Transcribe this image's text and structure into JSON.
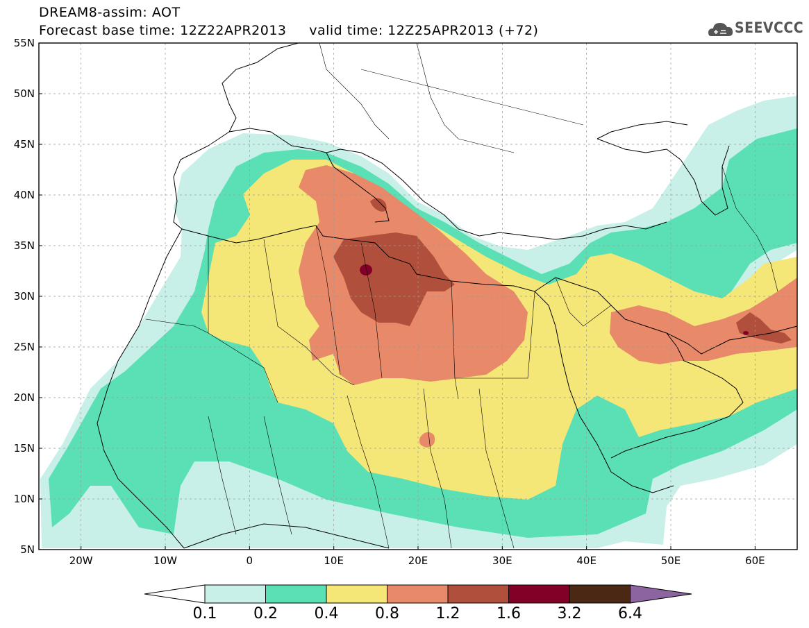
{
  "header": {
    "title": "DREAM8-assim: AOT",
    "subtitle_left": "Forecast base time: 12Z22APR2013",
    "subtitle_right": "valid time: 12Z25APR2013 (+72)"
  },
  "logo": {
    "text": "SEEVCCC"
  },
  "map": {
    "projection": "lat-lon",
    "lon_range": [
      -25,
      65
    ],
    "lat_range": [
      5,
      55
    ],
    "lat_labels": [
      "55N",
      "50N",
      "45N",
      "40N",
      "35N",
      "30N",
      "25N",
      "20N",
      "15N",
      "10N",
      "5N"
    ],
    "lon_labels": [
      "20W",
      "10W",
      "0",
      "10E",
      "20E",
      "30E",
      "40E",
      "50E",
      "60E"
    ],
    "grid": true,
    "variable": "AOT"
  },
  "colorbar": {
    "levels": [
      "0.1",
      "0.2",
      "0.4",
      "0.8",
      "1.2",
      "1.6",
      "3.2",
      "6.4"
    ],
    "colors": [
      "#ffffff",
      "#c8f0e8",
      "#5ae0b4",
      "#f5e678",
      "#e8896a",
      "#b0503c",
      "#820028",
      "#4a2814",
      "#8c64a0"
    ]
  }
}
